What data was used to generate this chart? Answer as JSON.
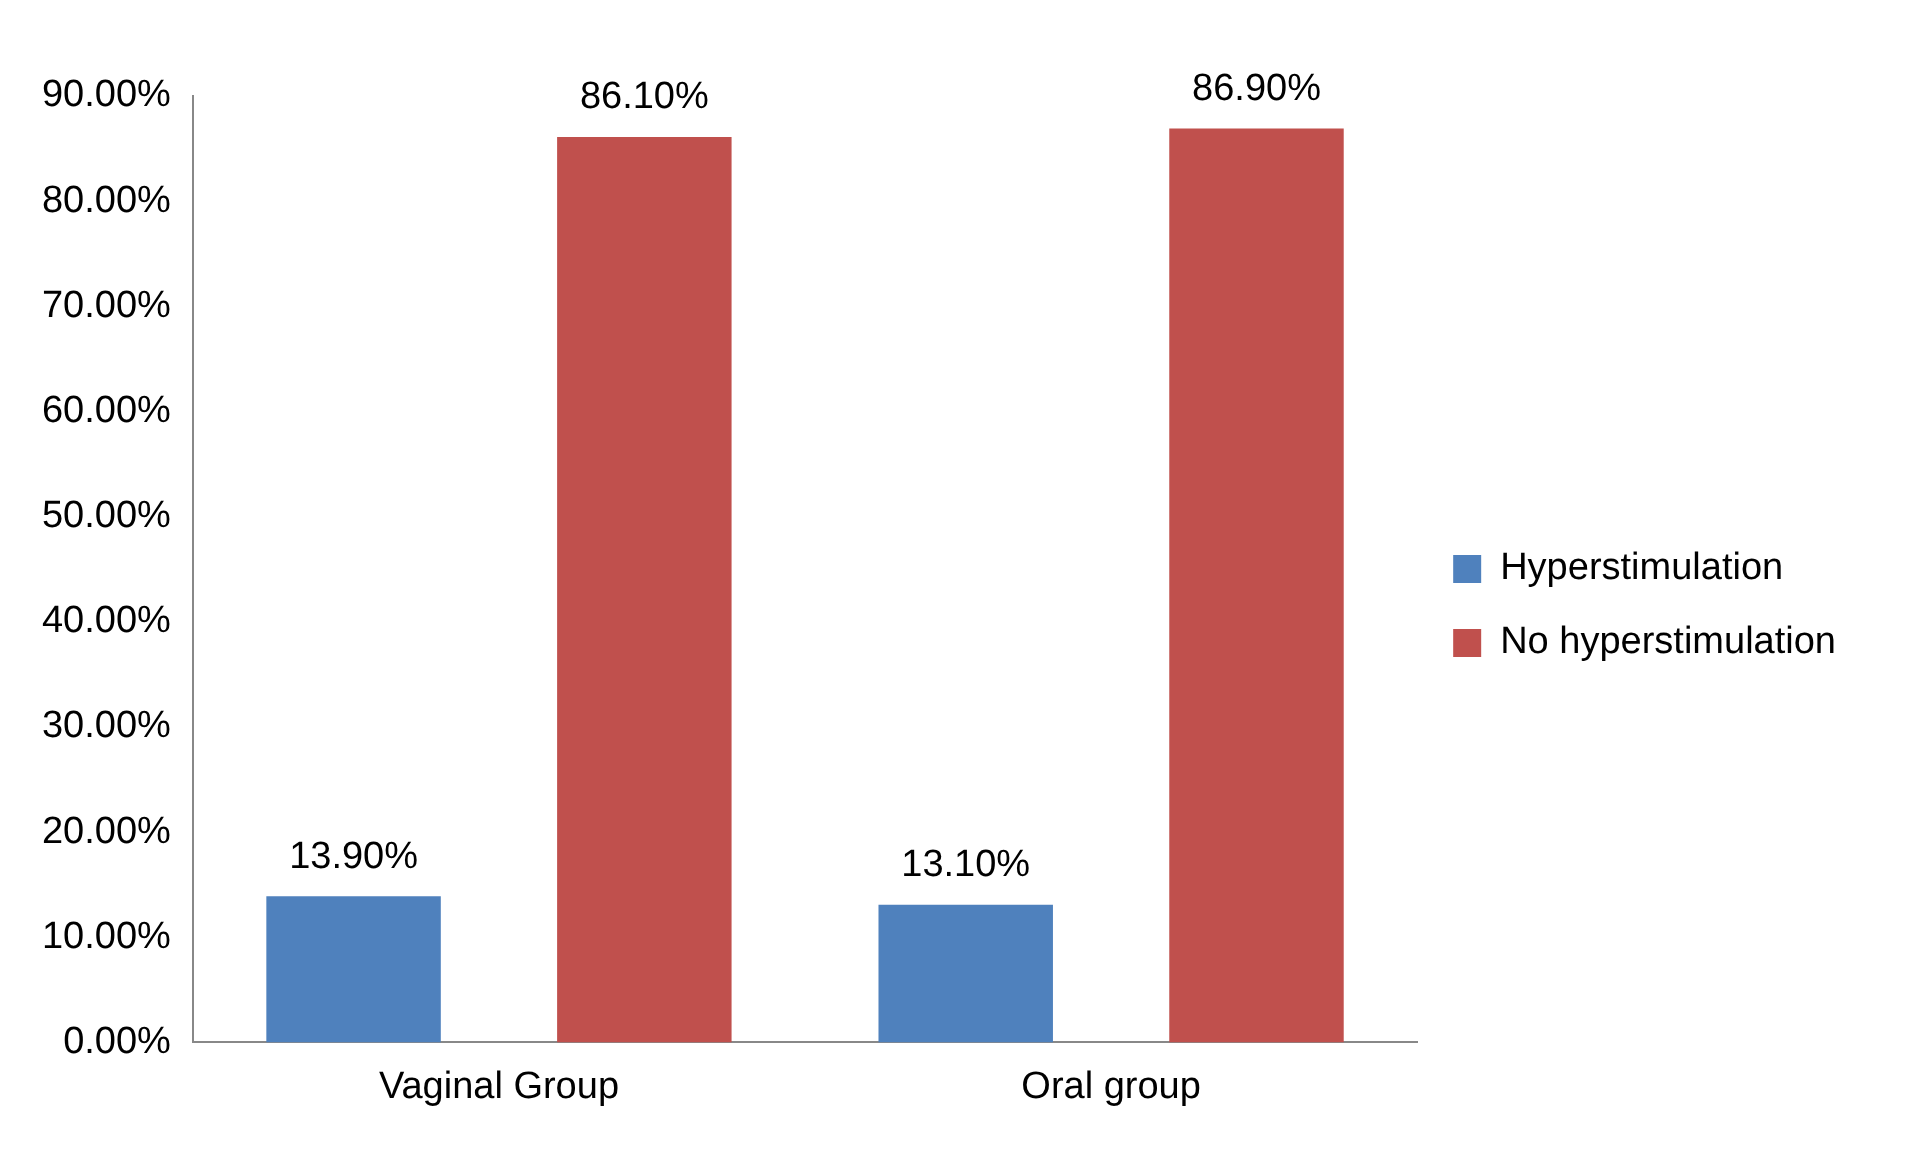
{
  "chart_data": {
    "type": "bar",
    "categories": [
      "Vaginal Group",
      "Oral group"
    ],
    "series": [
      {
        "name": "Hyperstimulation",
        "color": "#4f81bd",
        "values": [
          13.9,
          13.1
        ],
        "value_labels": [
          "13.90%",
          "13.10%"
        ]
      },
      {
        "name": "No hyperstimulation",
        "color": "#c0504d",
        "values": [
          86.1,
          86.9
        ],
        "value_labels": [
          "86.10%",
          "86.90%"
        ]
      }
    ],
    "ylim": [
      0,
      90
    ],
    "yticks": [
      {
        "value": 0,
        "label": "0.00%"
      },
      {
        "value": 10,
        "label": "10.00%"
      },
      {
        "value": 20,
        "label": "20.00%"
      },
      {
        "value": 30,
        "label": "30.00%"
      },
      {
        "value": 40,
        "label": "40.00%"
      },
      {
        "value": 50,
        "label": "50.00%"
      },
      {
        "value": 60,
        "label": "60.00%"
      },
      {
        "value": 70,
        "label": "70.00%"
      },
      {
        "value": 80,
        "label": "80.00%"
      },
      {
        "value": 90,
        "label": "90.00%"
      }
    ],
    "grid": false,
    "legend": "right"
  }
}
